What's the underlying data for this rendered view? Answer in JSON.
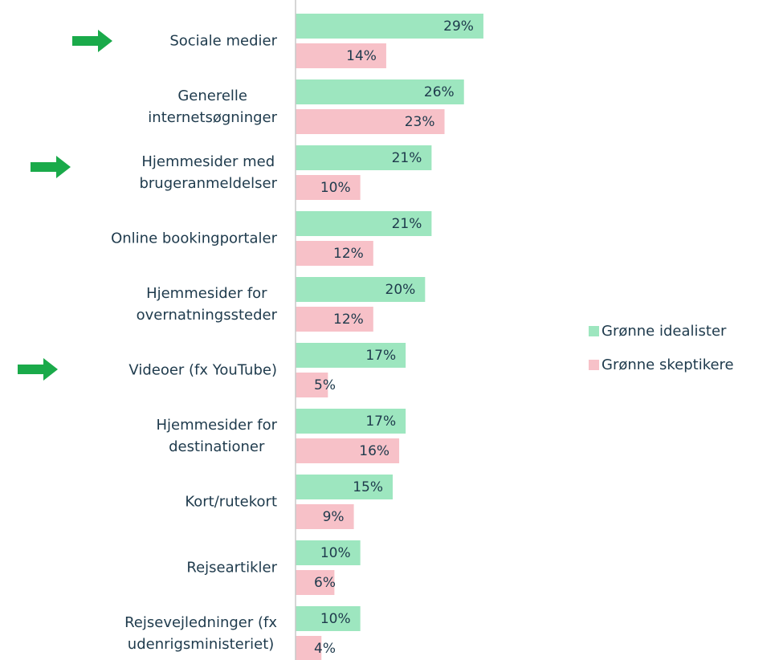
{
  "chart_data": {
    "type": "bar",
    "orientation": "horizontal",
    "categories": [
      "Sociale medier",
      "Generelle\ninternetsøgninger",
      "Hjemmesider med\nbrugeranmeldelser",
      "Online bookingportaler",
      "Hjemmesider for\novernatningssteder",
      "Videoer  (fx YouTube)",
      "Hjemmesider for\ndestinationer",
      "Kort/rutekort",
      "Rejseartikler",
      "Rejsevejledninger (fx\nudenrigsministeriet)"
    ],
    "series": [
      {
        "name": "Grønne idealister",
        "color": "#9de6bf",
        "values": [
          29,
          26,
          21,
          21,
          20,
          17,
          17,
          15,
          10,
          10
        ],
        "value_labels": [
          "29%",
          "26%",
          "21%",
          "21%",
          "20%",
          "17%",
          "17%",
          "15%",
          "10%",
          "10%"
        ]
      },
      {
        "name": "Grønne skeptikere",
        "color": "#f7c1c8",
        "values": [
          14,
          23,
          10,
          12,
          12,
          5,
          16,
          9,
          6,
          4
        ],
        "value_labels": [
          "14%",
          "23%",
          "10%",
          "12%",
          "12%",
          "5%",
          "16%",
          "9%",
          "6%",
          "4%"
        ]
      }
    ],
    "xlim": [
      0,
      30
    ],
    "legend": "right"
  }
}
